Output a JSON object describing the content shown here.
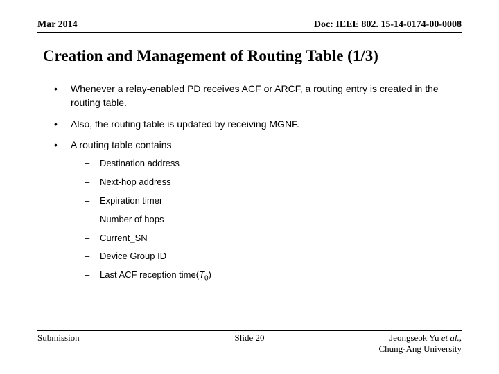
{
  "header": {
    "date": "Mar 2014",
    "doc": "Doc: IEEE 802. 15-14-0174-00-0008"
  },
  "title": "Creation and Management of Routing Table (1/3)",
  "bullets": [
    "Whenever a relay-enabled PD receives ACF or ARCF, a routing entry is created in the routing table.",
    "Also, the routing table is updated by receiving MGNF.",
    "A routing table contains"
  ],
  "subitems": [
    "Destination address",
    "Next-hop address",
    "Expiration timer",
    "Number of hops",
    "Current_SN",
    "Device Group ID"
  ],
  "lastSubPrefix": "Last ACF reception time(",
  "lastSubVar": "T",
  "lastSubSub": "0",
  "lastSubSuffix": ")",
  "footer": {
    "left": "Submission",
    "center": "Slide 20",
    "author": "Jeongseok Yu ",
    "etal": "et al.",
    "sep": ", ",
    "affiliation": "Chung-Ang University"
  }
}
